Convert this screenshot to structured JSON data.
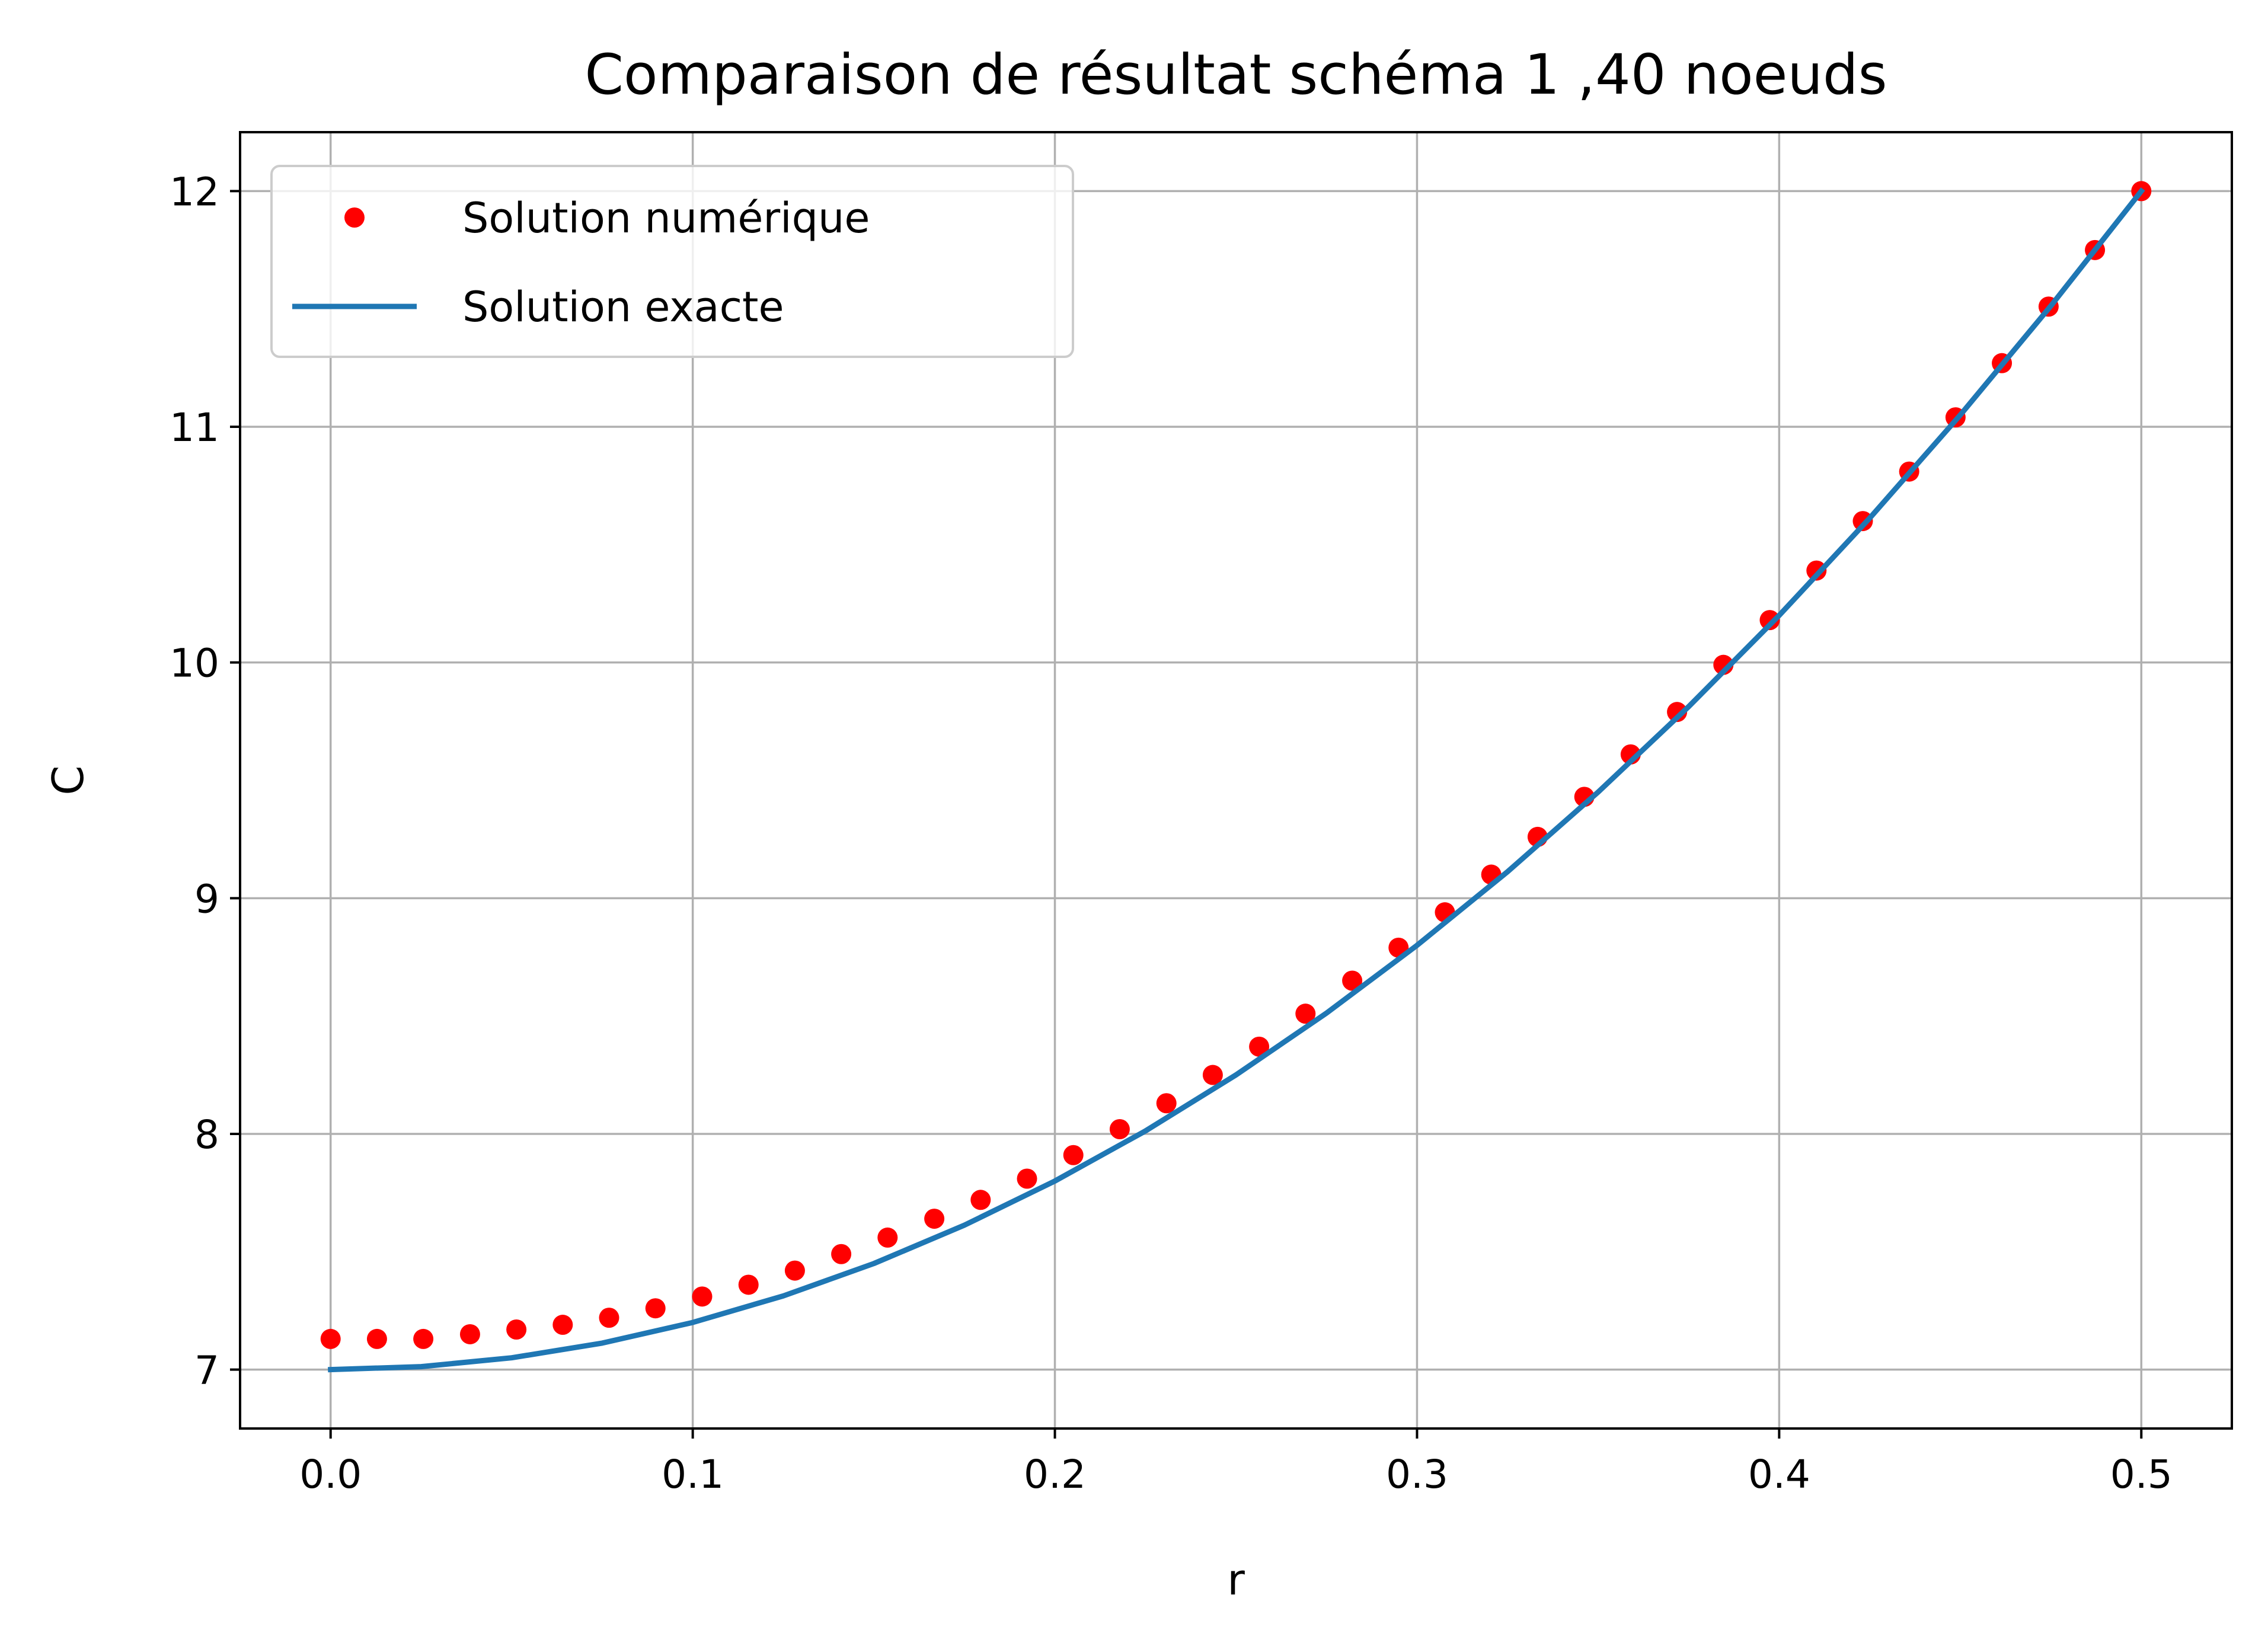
{
  "chart_data": {
    "type": "line",
    "title": "Comparaison de résultat schéma 1 ,40 noeuds",
    "xlabel": "r",
    "ylabel": "C",
    "xlim": [
      -0.025,
      0.525
    ],
    "ylim": [
      6.75,
      12.25
    ],
    "xticks": [
      0.0,
      0.1,
      0.2,
      0.3,
      0.4,
      0.5
    ],
    "xtick_labels": [
      "0.0",
      "0.1",
      "0.2",
      "0.3",
      "0.4",
      "0.5"
    ],
    "yticks": [
      7,
      8,
      9,
      10,
      11,
      12
    ],
    "ytick_labels": [
      "7",
      "8",
      "9",
      "10",
      "11",
      "12"
    ],
    "grid": true,
    "legend": {
      "placement": "upper-left"
    },
    "series": [
      {
        "name": "Solution numérique",
        "kind": "scatter",
        "color": "#ff0000",
        "x": [
          0.0,
          0.0128,
          0.0256,
          0.0385,
          0.0513,
          0.0641,
          0.0769,
          0.0897,
          0.1026,
          0.1154,
          0.1282,
          0.141,
          0.1538,
          0.1667,
          0.1795,
          0.1923,
          0.2051,
          0.2179,
          0.2308,
          0.2436,
          0.2564,
          0.2692,
          0.2821,
          0.2949,
          0.3077,
          0.3205,
          0.3333,
          0.3462,
          0.359,
          0.3718,
          0.3846,
          0.3974,
          0.4103,
          0.4231,
          0.4359,
          0.4487,
          0.4615,
          0.4744,
          0.4872,
          0.5
        ],
        "y": [
          7.13,
          7.13,
          7.13,
          7.15,
          7.17,
          7.19,
          7.22,
          7.26,
          7.31,
          7.36,
          7.42,
          7.49,
          7.56,
          7.64,
          7.72,
          7.81,
          7.91,
          8.02,
          8.13,
          8.25,
          8.37,
          8.51,
          8.65,
          8.79,
          8.94,
          9.1,
          9.26,
          9.43,
          9.61,
          9.79,
          9.99,
          10.18,
          10.39,
          10.6,
          10.81,
          11.04,
          11.27,
          11.51,
          11.75,
          12.0
        ]
      },
      {
        "name": "Solution exacte",
        "kind": "line",
        "color": "#1f77b4",
        "x": [
          0.0,
          0.025,
          0.05,
          0.075,
          0.1,
          0.125,
          0.15,
          0.175,
          0.2,
          0.225,
          0.25,
          0.275,
          0.3,
          0.325,
          0.35,
          0.375,
          0.4,
          0.425,
          0.45,
          0.475,
          0.5
        ],
        "y": [
          7.0,
          7.0125,
          7.05,
          7.1125,
          7.2,
          7.3125,
          7.45,
          7.6125,
          7.8,
          8.0125,
          8.25,
          8.5125,
          8.8,
          9.1125,
          9.45,
          9.8125,
          10.2,
          10.6125,
          11.05,
          11.5125,
          12.0
        ]
      }
    ]
  }
}
